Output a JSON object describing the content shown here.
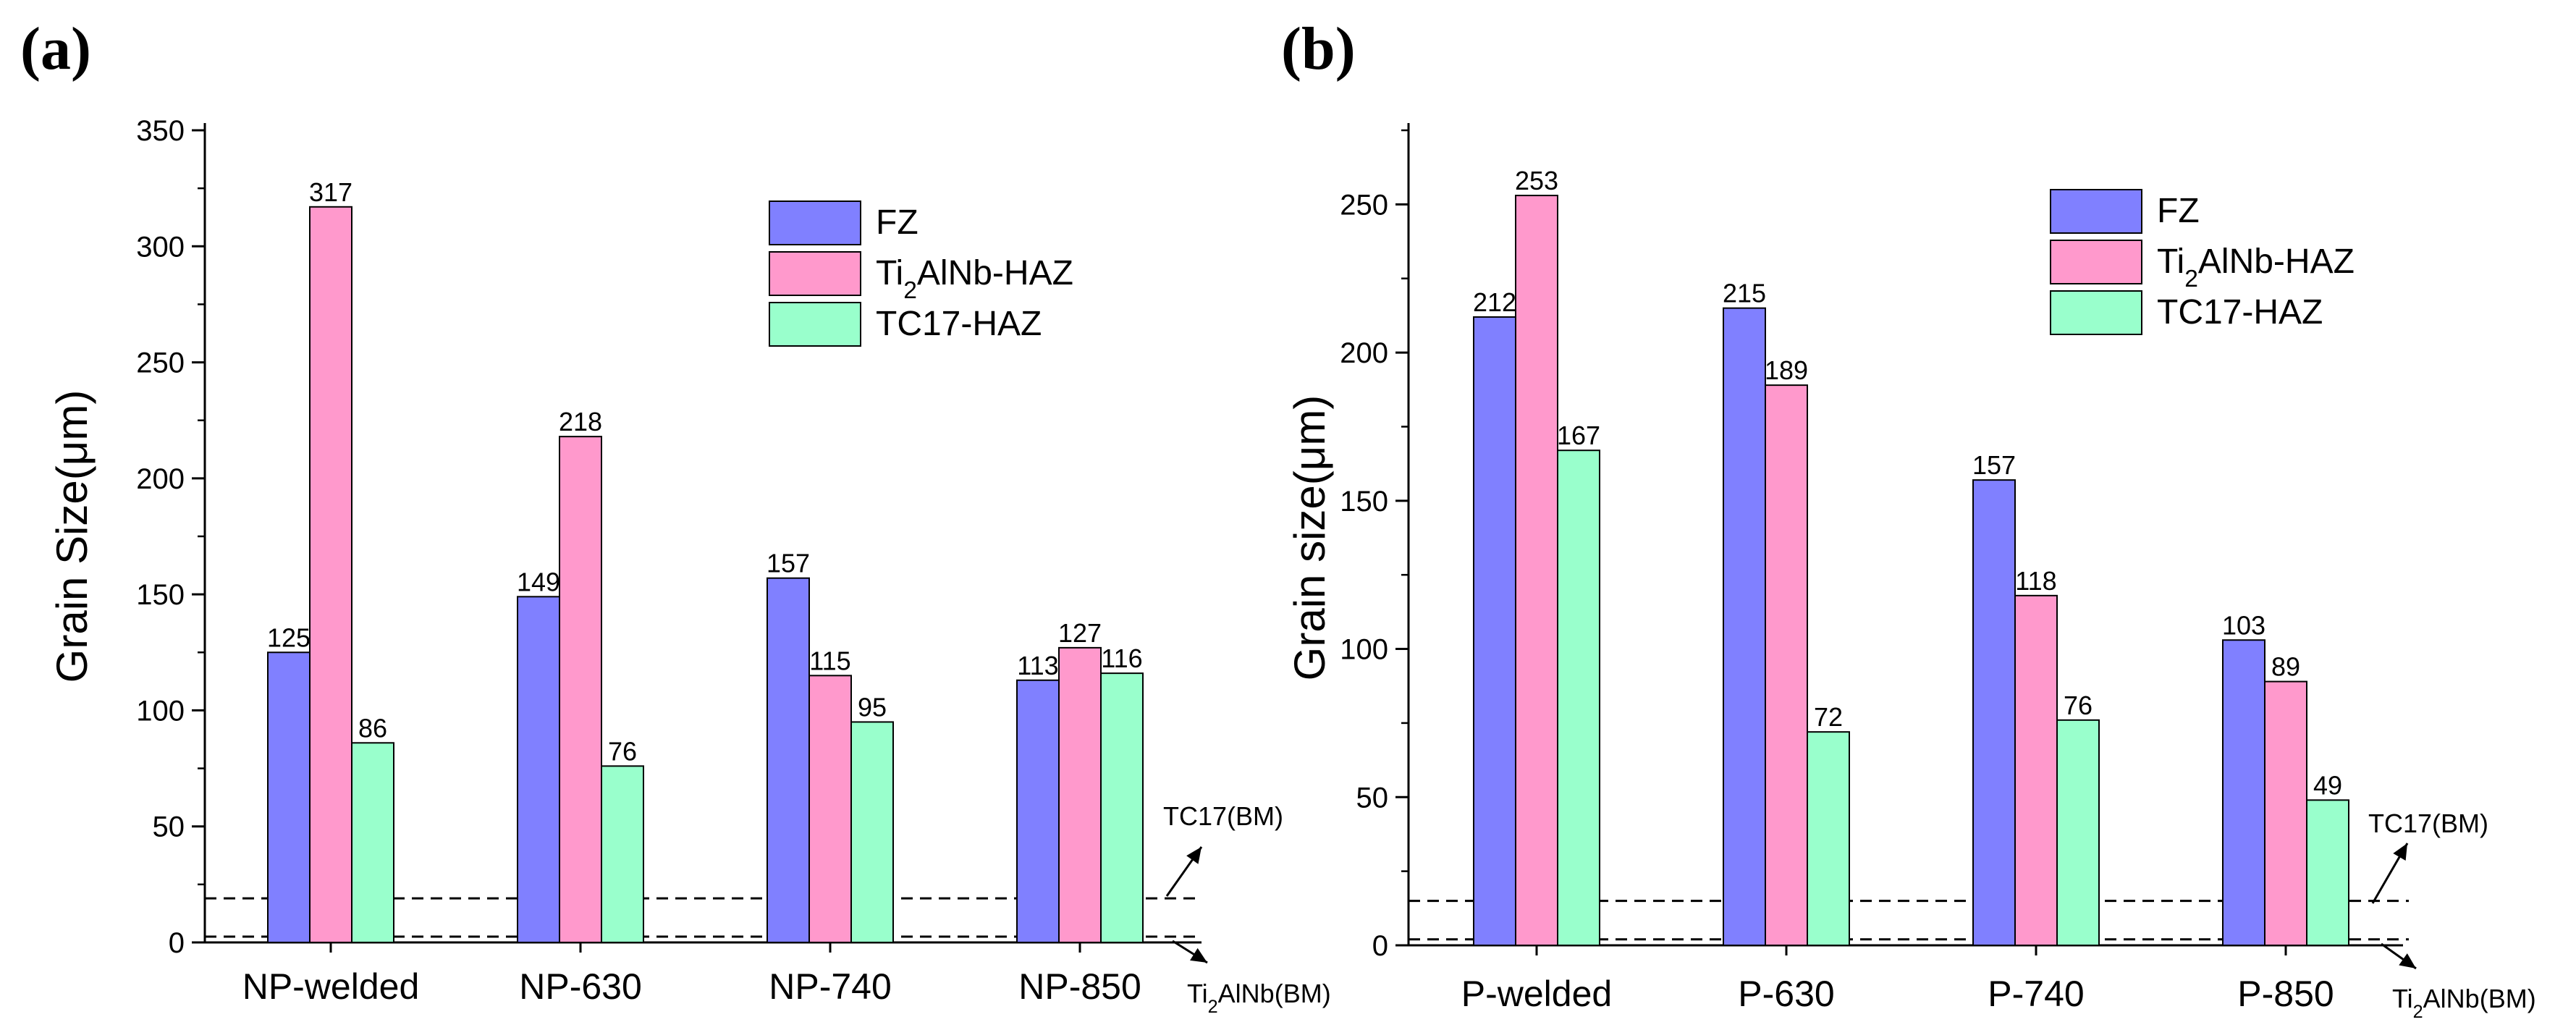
{
  "chart_data": [
    {
      "type": "bar",
      "panel_label": "(a)",
      "ylabel": "Grain Size(μm)",
      "ylim": [
        0,
        350
      ],
      "yticks": [
        0,
        50,
        100,
        150,
        200,
        250,
        300,
        350
      ],
      "categories": [
        "NP-welded",
        "NP-630",
        "NP-740",
        "NP-850"
      ],
      "series": [
        {
          "name": "FZ",
          "base": "FZ",
          "sub": "",
          "tail": "",
          "color": "#8080ff",
          "values": [
            125,
            149,
            157,
            113
          ]
        },
        {
          "name": "Ti2AlNb-HAZ",
          "base": "Ti",
          "sub": "2",
          "tail": "AlNb-HAZ",
          "color": "#ff99cc",
          "values": [
            317,
            218,
            115,
            127
          ]
        },
        {
          "name": "TC17-HAZ",
          "base": "TC17-HAZ",
          "sub": "",
          "tail": "",
          "color": "#99ffcc",
          "values": [
            86,
            76,
            95,
            116
          ]
        }
      ],
      "reference_lines": [
        {
          "name": "TC17(BM)",
          "base": "TC17(BM)",
          "sub": "",
          "tail": "",
          "value": 19
        },
        {
          "name": "Ti2AlNb(BM)",
          "base": "Ti",
          "sub": "2",
          "tail": "AlNb(BM)",
          "value": 2.5
        }
      ],
      "legend_position": "top-right"
    },
    {
      "type": "bar",
      "panel_label": "(b)",
      "ylabel": "Grain size(μm)",
      "ylim": [
        0,
        275
      ],
      "yticks": [
        0,
        50,
        100,
        150,
        200,
        250
      ],
      "categories": [
        "P-welded",
        "P-630",
        "P-740",
        "P-850"
      ],
      "series": [
        {
          "name": "FZ",
          "base": "FZ",
          "sub": "",
          "tail": "",
          "color": "#8080ff",
          "values": [
            212,
            215,
            157,
            103
          ]
        },
        {
          "name": "Ti2AlNb-HAZ",
          "base": "Ti",
          "sub": "2",
          "tail": "AlNb-HAZ",
          "color": "#ff99cc",
          "values": [
            253,
            189,
            118,
            89
          ]
        },
        {
          "name": "TC17-HAZ",
          "base": "TC17-HAZ",
          "sub": "",
          "tail": "",
          "color": "#99ffcc",
          "values": [
            167,
            72,
            76,
            49
          ]
        }
      ],
      "reference_lines": [
        {
          "name": "TC17(BM)",
          "base": "TC17(BM)",
          "sub": "",
          "tail": "",
          "value": 15
        },
        {
          "name": "Ti2AlNb(BM)",
          "base": "Ti",
          "sub": "2",
          "tail": "AlNb(BM)",
          "value": 2
        }
      ],
      "legend_position": "top-right"
    }
  ]
}
